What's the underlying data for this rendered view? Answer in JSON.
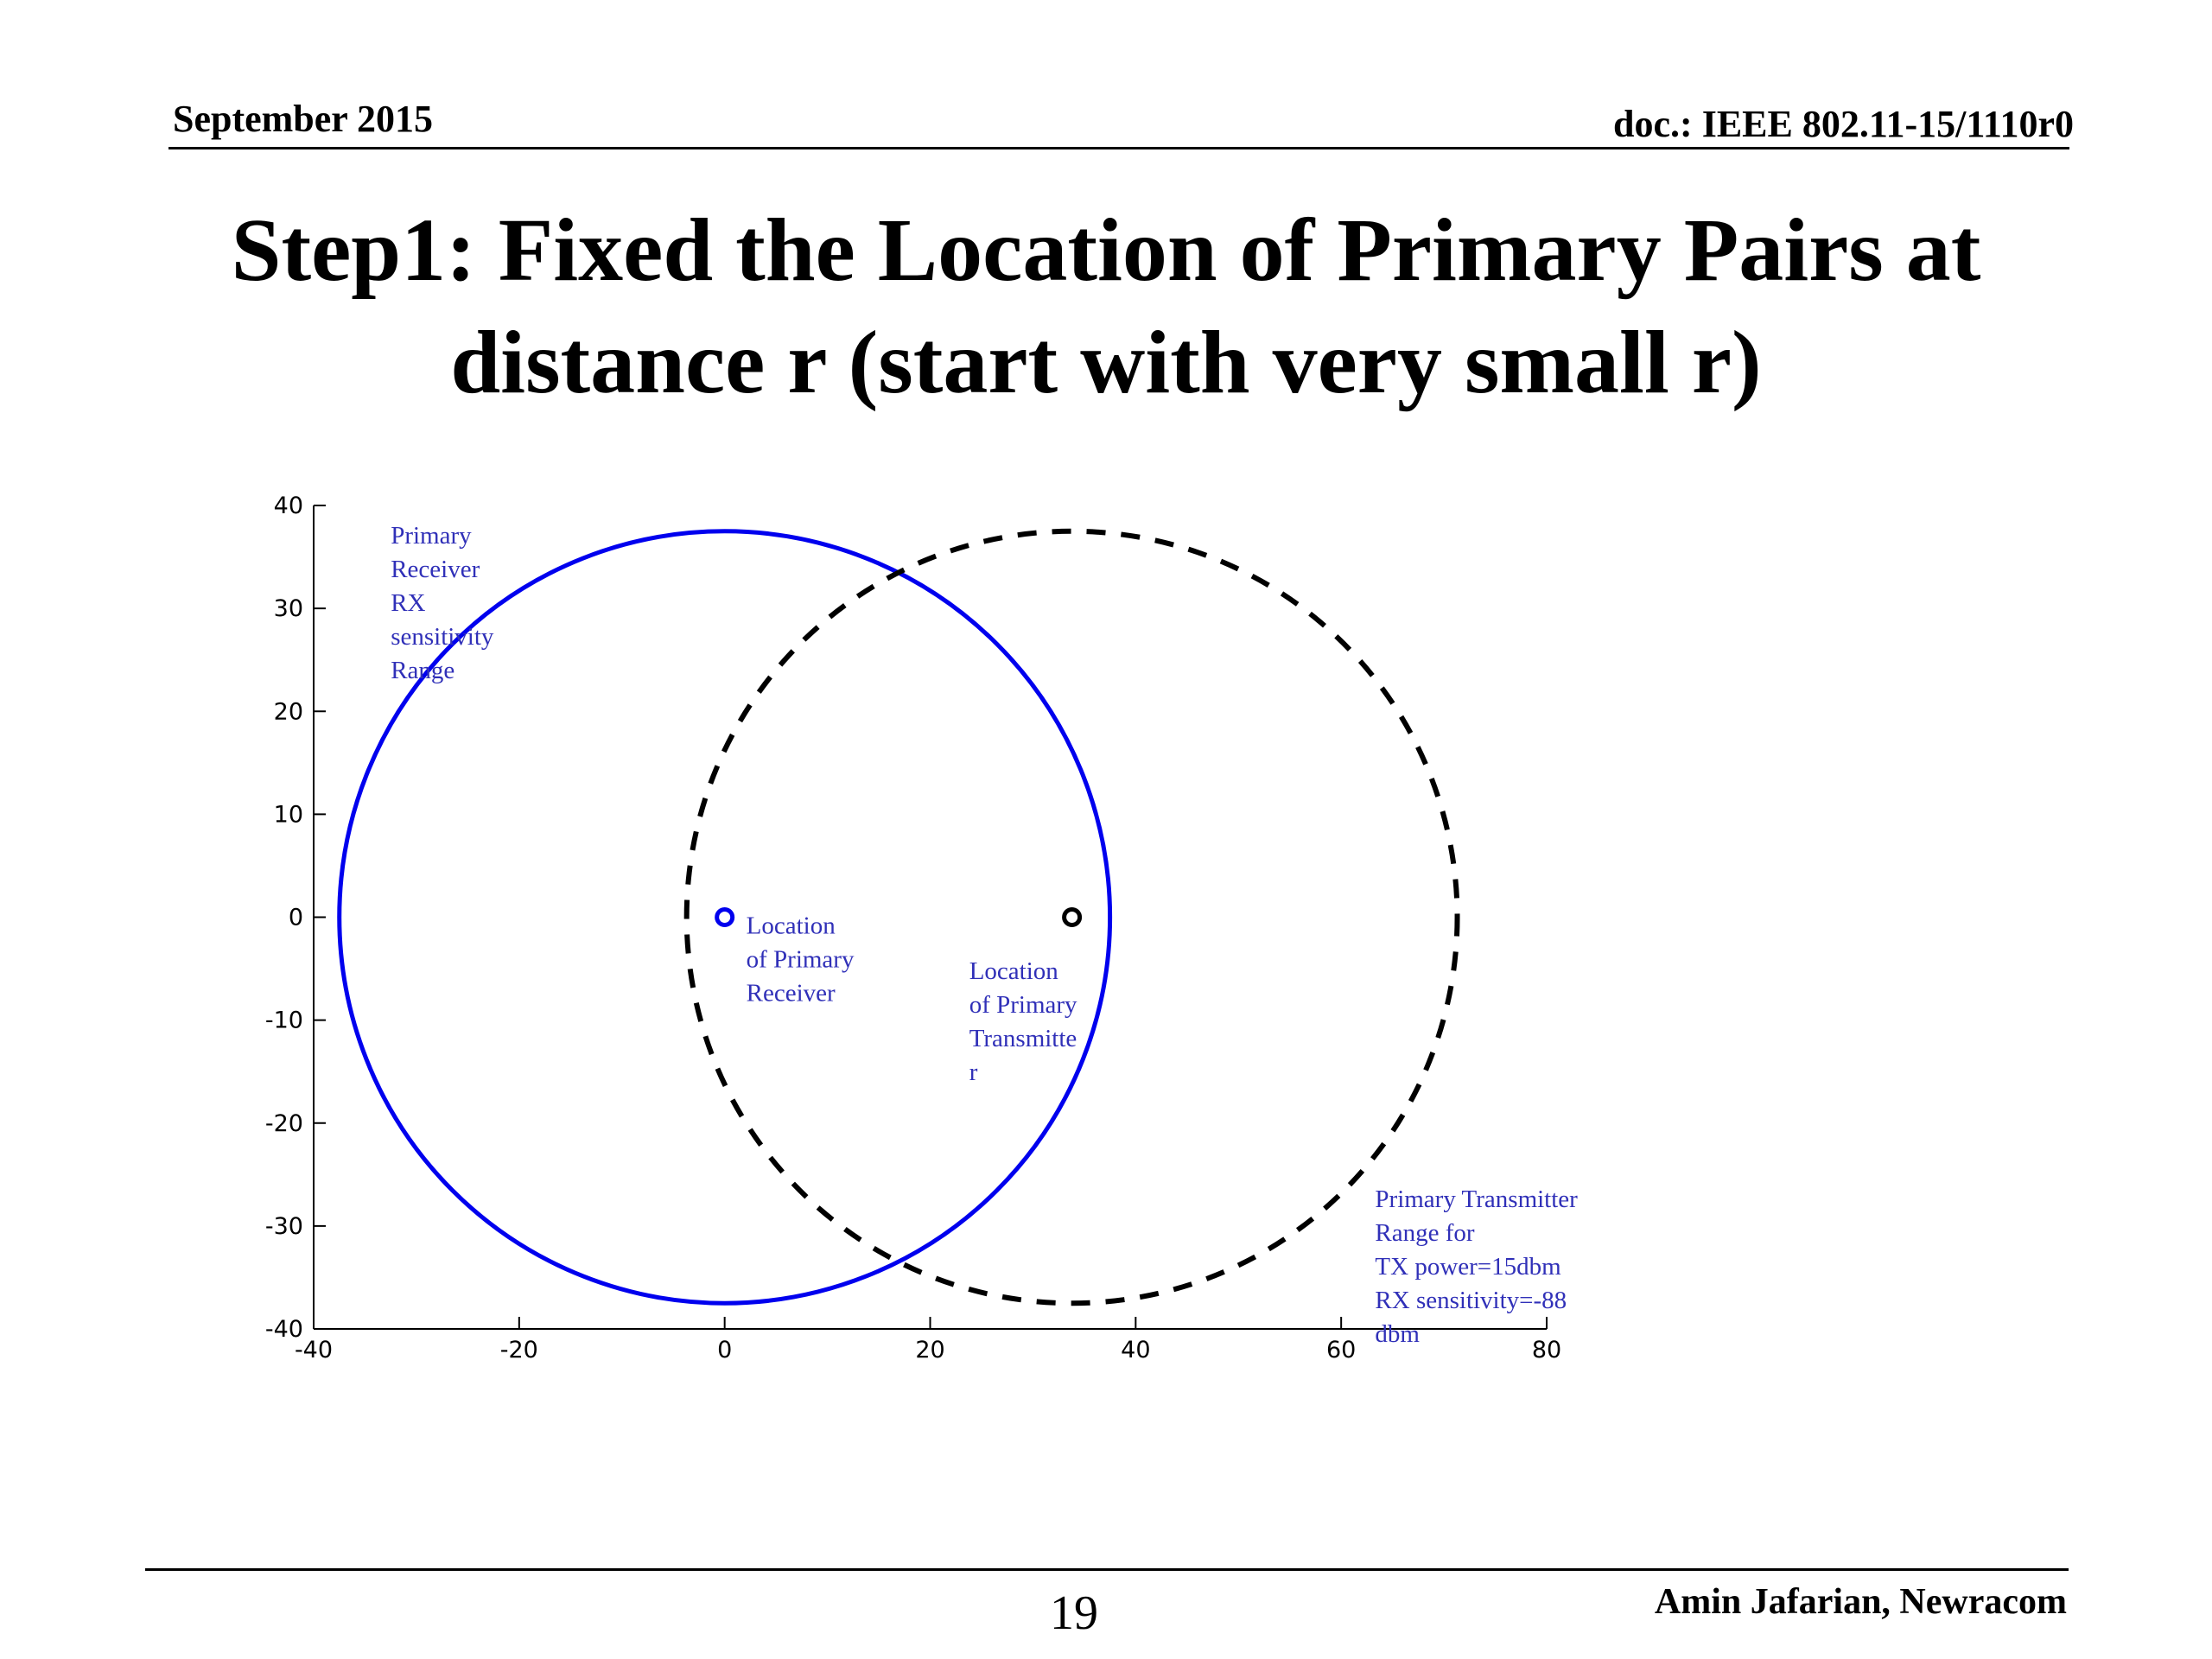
{
  "header": {
    "date": "September 2015",
    "doc": "doc.: IEEE 802.11-15/1110r0"
  },
  "title": {
    "line1": "Step1: Fixed the Location of Primary Pairs at",
    "line2": "distance r (start with very small r)"
  },
  "footer": {
    "page_number": "19",
    "author": "Amin Jafarian, Newracom"
  },
  "colors": {
    "receiver": "#0000ee",
    "transmitter": "#000000",
    "annotation": "#3030b8"
  },
  "chart_data": {
    "type": "scatter",
    "xlim": [
      -40,
      80
    ],
    "ylim": [
      -40,
      40
    ],
    "xticks": [
      -40,
      -20,
      0,
      20,
      40,
      60,
      80
    ],
    "yticks": [
      40,
      30,
      20,
      10,
      0,
      -10,
      -20,
      -30,
      -40
    ],
    "grid": false,
    "series": [
      {
        "id": "rx_range",
        "shape": "circle",
        "center": [
          0,
          0
        ],
        "radius": 37.5,
        "style": "solid",
        "color": "#0000ee"
      },
      {
        "id": "tx_range",
        "shape": "circle",
        "center": [
          33.8,
          0
        ],
        "radius": 37.5,
        "style": "dashed",
        "color": "#000000"
      },
      {
        "id": "rx_location",
        "shape": "marker",
        "x": 0,
        "y": 0,
        "color": "#0000ee"
      },
      {
        "id": "tx_location",
        "shape": "marker",
        "x": 33.8,
        "y": 0,
        "color": "#000000"
      }
    ],
    "annotations": [
      {
        "id": "rx_range_label",
        "x": -32.5,
        "y": 38.5,
        "lines": [
          "Primary",
          "Receiver",
          "RX",
          "sensitivity",
          "Range"
        ]
      },
      {
        "id": "rx_location_label",
        "x": 2.1,
        "y": 0.6,
        "lines": [
          "Location",
          "of Primary",
          "Receiver"
        ]
      },
      {
        "id": "tx_location_label",
        "x": 23.8,
        "y": -3.8,
        "lines": [
          "Location",
          "of Primary",
          "Transmitte",
          "r"
        ]
      },
      {
        "id": "tx_range_label",
        "x": 63.3,
        "y": -26.0,
        "lines": [
          "Primary Transmitter",
          "Range for",
          "TX power=15dbm",
          "RX sensitivity=-88",
          "dbm"
        ]
      }
    ]
  }
}
